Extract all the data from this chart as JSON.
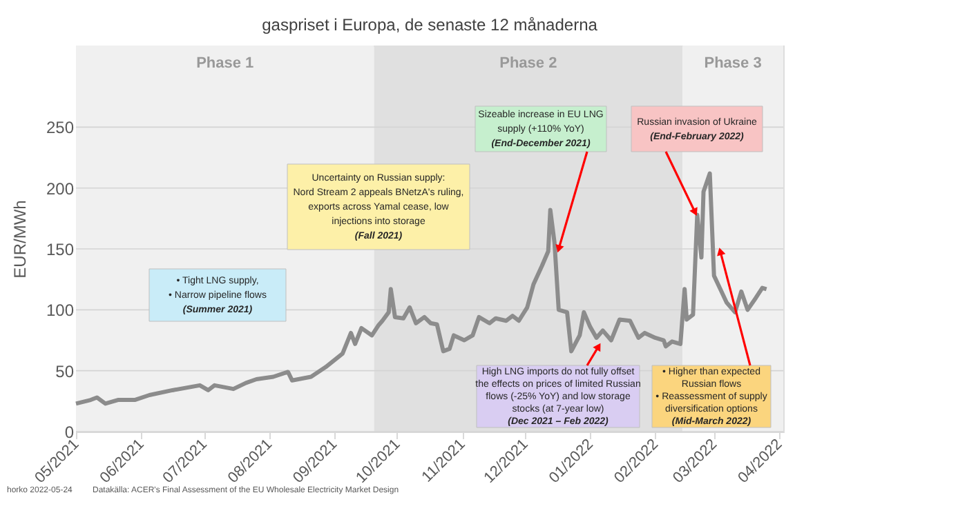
{
  "chart_data": {
    "type": "line",
    "title": "gaspriset i Europa, de senaste 12 månaderna",
    "ylabel": "EUR/MWh",
    "x": [
      "2021-05-01",
      "2021-05-08",
      "2021-05-11",
      "2021-05-15",
      "2021-05-21",
      "2021-05-29",
      "2021-06-05",
      "2021-06-16",
      "2021-06-29",
      "2021-07-03",
      "2021-07-06",
      "2021-07-15",
      "2021-07-21",
      "2021-07-26",
      "2021-08-03",
      "2021-08-10",
      "2021-08-12",
      "2021-08-21",
      "2021-08-28",
      "2021-09-05",
      "2021-09-09",
      "2021-09-11",
      "2021-09-14",
      "2021-09-19",
      "2021-09-22",
      "2021-09-24",
      "2021-09-27",
      "2021-09-28",
      "2021-09-30",
      "2021-10-04",
      "2021-10-07",
      "2021-10-10",
      "2021-10-14",
      "2021-10-17",
      "2021-10-20",
      "2021-10-23",
      "2021-10-26",
      "2021-10-28",
      "2021-11-02",
      "2021-11-06",
      "2021-11-09",
      "2021-11-14",
      "2021-11-17",
      "2021-11-22",
      "2021-11-25",
      "2021-11-28",
      "2021-12-02",
      "2021-12-05",
      "2021-12-09",
      "2021-12-12",
      "2021-12-13",
      "2021-12-15",
      "2021-12-17",
      "2021-12-21",
      "2021-12-23",
      "2021-12-27",
      "2021-12-29",
      "2022-01-01",
      "2022-01-04",
      "2022-01-07",
      "2022-01-11",
      "2022-01-15",
      "2022-01-20",
      "2022-01-24",
      "2022-01-27",
      "2022-02-01",
      "2022-02-05",
      "2022-02-06",
      "2022-02-09",
      "2022-02-13",
      "2022-02-15",
      "2022-02-16",
      "2022-02-19",
      "2022-02-21",
      "2022-02-23",
      "2022-02-24",
      "2022-02-27",
      "2022-03-01",
      "2022-03-04",
      "2022-03-07",
      "2022-03-11",
      "2022-03-14",
      "2022-03-17",
      "2022-03-21",
      "2022-03-24",
      "2022-03-26"
    ],
    "series": [
      {
        "color": "#8c8c8c",
        "values": [
          23,
          26,
          28,
          23,
          26,
          26,
          30,
          34,
          38,
          34,
          38,
          35,
          40,
          43,
          45,
          49,
          42,
          45,
          53,
          64,
          81,
          72,
          85,
          79,
          87,
          91,
          98,
          117,
          94,
          93,
          102,
          89,
          94,
          89,
          88,
          66,
          68,
          79,
          75,
          79,
          94,
          89,
          93,
          91,
          95,
          91,
          102,
          121,
          136,
          148,
          182,
          155,
          100,
          98,
          66,
          79,
          98,
          86,
          77,
          83,
          75,
          92,
          91,
          77,
          81,
          77,
          75,
          70,
          74,
          72,
          117,
          92,
          96,
          178,
          143,
          197,
          212,
          128,
          117,
          106,
          98,
          115,
          100,
          110,
          118,
          117
        ]
      }
    ],
    "xlim": [
      "2021-05-01",
      "2022-04-03"
    ],
    "xticks": [
      {
        "value": "2021-05-01",
        "label": "05/2021"
      },
      {
        "value": "2021-06-01",
        "label": "06/2021"
      },
      {
        "value": "2021-07-01",
        "label": "07/2021"
      },
      {
        "value": "2021-08-01",
        "label": "08/2021"
      },
      {
        "value": "2021-09-01",
        "label": "09/2021"
      },
      {
        "value": "2021-10-01",
        "label": "10/2021"
      },
      {
        "value": "2021-11-01",
        "label": "11/2021"
      },
      {
        "value": "2021-12-01",
        "label": "12/2021"
      },
      {
        "value": "2022-01-01",
        "label": "01/2022"
      },
      {
        "value": "2022-02-01",
        "label": "02/2022"
      },
      {
        "value": "2022-03-01",
        "label": "03/2022"
      },
      {
        "value": "2022-04-01",
        "label": "04/2022"
      }
    ],
    "ylim": [
      0,
      317
    ],
    "yticks": [
      0,
      50,
      100,
      150,
      200,
      250
    ],
    "grid": "y",
    "legend": false,
    "marker": "none",
    "line_style": "solid",
    "bands": [
      {
        "axis": "x",
        "from": "2021-05-01",
        "to": "2021-09-20",
        "label": "Phase 1",
        "color": "#f0f0f0"
      },
      {
        "axis": "x",
        "from": "2021-09-20",
        "to": "2022-02-14",
        "label": "Phase 2",
        "color": "#e0e0e0"
      },
      {
        "axis": "x",
        "from": "2022-02-14",
        "to": "2022-04-03",
        "label": "Phase 3",
        "color": "#f0f0f0"
      }
    ],
    "annotations": [
      "• Tight LNG supply,\n• Narrow pipeline flows\n(Summer 2021)",
      "Uncertainty on Russian supply:\nNord Stream 2 appeals BNetzA's ruling,\nexports across Yamal cease, low\ninjections into storage\n(Fall 2021)",
      {
        "text": "Sizeable increase in EU LNG\nsupply (+110% YoY)\n(End-December 2021)",
        "x": "2021-12-17",
        "y": 150
      },
      {
        "text": "Russian invasion of Ukraine\n(End-February 2022)",
        "x": "2022-02-20",
        "y": 180
      },
      {
        "text": "High LNG imports do not fully offset\nthe effects on prices of limited Russian\nflows (-25% YoY) and low storage\nstocks (at 7-year low)\n(Dec 2021 – Feb 2022)",
        "x": "2022-01-05",
        "y": 70
      },
      {
        "text": "• Higher than expected\nRussian flows\n• Reassessment of supply\ndiversification options\n(Mid-March 2022)",
        "x": "2022-03-04",
        "y": 148
      },
      "horko 2022-05-24",
      "Datakälla: ACER's Final Assessment of the EU Wholesale Electricity Market Design"
    ]
  }
}
